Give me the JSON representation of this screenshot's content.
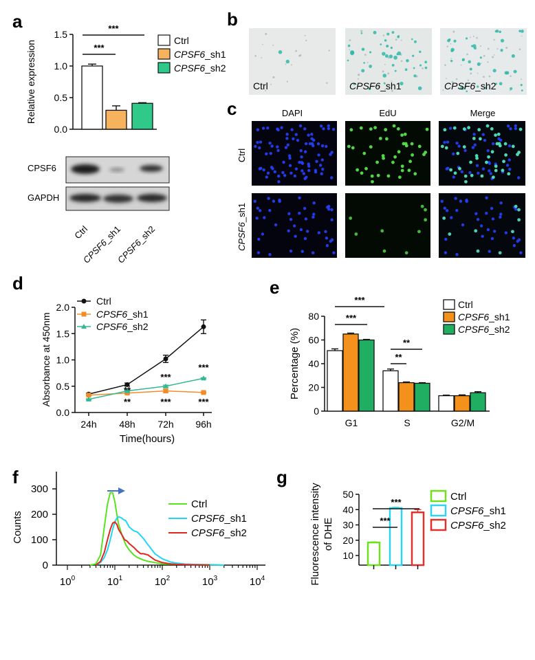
{
  "panel_labels": [
    "a",
    "b",
    "c",
    "d",
    "e",
    "f",
    "g"
  ],
  "colors": {
    "ctrl_a": "#ffffff",
    "sh1_a": "#f7b25e",
    "sh2_a": "#2fc98a",
    "ctrl_d": "#111111",
    "sh1_d": "#f28c28",
    "sh2_d": "#33b894",
    "ctrl_e": "#ffffff",
    "sh1_e": "#f4901c",
    "sh2_e": "#1fae62",
    "ctrl_f": "#57e31d",
    "sh1_f": "#1fd6f6",
    "sh2_f": "#e0261a",
    "ctrl_g": "#6fe11c",
    "sh1_g": "#2fd3f1",
    "sh2_g": "#e0322a",
    "arrow": "#4472c4"
  },
  "a": {
    "legend": [
      {
        "pre": "",
        "em": "",
        "post": "Ctrl"
      },
      {
        "pre": "",
        "em": "CPSF6",
        "post": "_sh1"
      },
      {
        "pre": "",
        "em": "CPSF6",
        "post": "_sh2"
      }
    ],
    "blot_labels": [
      "CPSF6",
      "GAPDH"
    ],
    "blot_xlabels": [
      {
        "pre": "",
        "em": "",
        "post": "Ctrl"
      },
      {
        "pre": "",
        "em": "CPSF6",
        "post": "_sh1"
      },
      {
        "pre": "",
        "em": "CPSF6",
        "post": "_sh2"
      }
    ],
    "sig": [
      "***",
      "***"
    ]
  },
  "b": {
    "labels": [
      {
        "pre": "",
        "em": "",
        "post": "Ctrl"
      },
      {
        "pre": "",
        "em": "CPSF6",
        "post": "_sh1"
      },
      {
        "pre": "",
        "em": "CPSF6",
        "post": "_sh2"
      }
    ]
  },
  "c": {
    "col_labels": [
      "DAPI",
      "EdU",
      "Merge"
    ],
    "row_labels": [
      {
        "pre": "",
        "em": "",
        "post": "Ctrl"
      },
      {
        "pre": "",
        "em": "CPSF6",
        "post": "_sh1"
      }
    ]
  },
  "d": {
    "legend": [
      {
        "pre": "",
        "em": "",
        "post": "Ctrl"
      },
      {
        "pre": "",
        "em": "CPSF6",
        "post": "_sh1"
      },
      {
        "pre": "",
        "em": "CPSF6",
        "post": "_sh2"
      }
    ],
    "sig_upper": [
      "",
      "**",
      "***",
      "***"
    ],
    "sig_lower": [
      "",
      "**",
      "***",
      "***"
    ]
  },
  "e": {
    "legend": [
      {
        "pre": "",
        "em": "",
        "post": "Ctrl"
      },
      {
        "pre": "",
        "em": "CPSF6",
        "post": "_sh1"
      },
      {
        "pre": "",
        "em": "CPSF6",
        "post": "_sh2"
      }
    ],
    "sig": [
      "***",
      "***",
      "**",
      "**"
    ]
  },
  "f": {
    "legend": [
      {
        "pre": "",
        "em": "",
        "post": "Ctrl"
      },
      {
        "pre": "",
        "em": "CPSF6",
        "post": "_sh1"
      },
      {
        "pre": "",
        "em": "CPSF6",
        "post": "_sh2"
      }
    ],
    "xticks": [
      {
        "base": "10",
        "exp": "0"
      },
      {
        "base": "10",
        "exp": "1"
      },
      {
        "base": "10",
        "exp": "2"
      },
      {
        "base": "10",
        "exp": "3"
      },
      {
        "base": "10",
        "exp": "4"
      }
    ]
  },
  "g": {
    "legend": [
      {
        "pre": "",
        "em": "",
        "post": "Ctrl"
      },
      {
        "pre": "",
        "em": "CPSF6",
        "post": "_sh1"
      },
      {
        "pre": "",
        "em": "CPSF6",
        "post": "_sh2"
      }
    ],
    "sig": [
      "***",
      "***"
    ]
  },
  "chart_data": [
    {
      "panel": "a",
      "type": "bar",
      "categories": [
        "Ctrl",
        "CPSF6_sh1",
        "CPSF6_sh2"
      ],
      "values": [
        1.0,
        0.3,
        0.41
      ],
      "errors": [
        0.03,
        0.07,
        0.01
      ],
      "ylabel": "Relative expression",
      "ylim": [
        0,
        1.5
      ],
      "yticks": [
        "0.0",
        "0.5",
        "1.0",
        "1.5"
      ]
    },
    {
      "panel": "d",
      "type": "line",
      "categories": [
        "24h",
        "48h",
        "72h",
        "96h"
      ],
      "series": [
        {
          "name": "Ctrl",
          "values": [
            0.35,
            0.53,
            1.02,
            1.63
          ],
          "errors": [
            0.02,
            0.03,
            0.07,
            0.13
          ]
        },
        {
          "name": "CPSF6_sh1",
          "values": [
            0.33,
            0.37,
            0.41,
            0.38
          ],
          "errors": [
            0.01,
            0.02,
            0.03,
            0.01
          ]
        },
        {
          "name": "CPSF6_sh2",
          "values": [
            0.25,
            0.41,
            0.5,
            0.65
          ],
          "errors": [
            0.01,
            0.01,
            0.02,
            0.01
          ]
        }
      ],
      "xlabel": "Time(hours)",
      "ylabel": "Absorbance at 450nm",
      "ylim": [
        0,
        2.0
      ],
      "yticks": [
        "0.0",
        "0.5",
        "1.0",
        "1.5",
        "2.0"
      ]
    },
    {
      "panel": "e",
      "type": "bar",
      "categories": [
        "G1",
        "S",
        "G2/M"
      ],
      "series": [
        {
          "name": "Ctrl",
          "values": [
            51,
            34,
            13
          ],
          "errors": [
            1.5,
            1.5,
            0.5
          ]
        },
        {
          "name": "CPSF6_sh1",
          "values": [
            65,
            24,
            13
          ],
          "errors": [
            0.8,
            0.6,
            0.7
          ]
        },
        {
          "name": "CPSF6_sh2",
          "values": [
            60,
            23.5,
            15.5
          ],
          "errors": [
            0.5,
            0.5,
            0.9
          ]
        }
      ],
      "ylabel": "Percentage (%)",
      "ylim": [
        0,
        80
      ],
      "yticks": [
        "0",
        "20",
        "40",
        "60",
        "80"
      ]
    },
    {
      "panel": "f",
      "type": "line",
      "x_scale": "log",
      "series": [
        {
          "name": "Ctrl",
          "x": [
            3,
            4,
            5,
            6,
            7,
            8,
            9,
            10,
            11,
            12,
            14,
            17,
            20,
            25,
            30,
            40,
            50,
            70,
            100,
            200,
            1000,
            2000
          ],
          "values": [
            0,
            5,
            40,
            150,
            240,
            285,
            285,
            250,
            200,
            160,
            120,
            80,
            60,
            40,
            30,
            20,
            15,
            10,
            5,
            3,
            2,
            0
          ]
        },
        {
          "name": "CPSF6_sh1",
          "x": [
            4,
            5,
            6,
            7,
            8,
            9,
            10,
            11,
            12,
            13,
            14,
            15,
            17,
            20,
            25,
            30,
            40,
            50,
            70,
            100,
            150,
            200,
            300,
            1000,
            2000
          ],
          "values": [
            0,
            10,
            30,
            60,
            100,
            140,
            170,
            185,
            190,
            188,
            185,
            180,
            175,
            150,
            135,
            130,
            105,
            80,
            45,
            25,
            12,
            8,
            4,
            1,
            0
          ]
        },
        {
          "name": "CPSF6_sh2",
          "x": [
            4,
            5,
            6,
            7,
            8,
            9,
            10,
            11,
            12,
            14,
            16,
            18,
            20,
            25,
            30,
            35,
            40,
            50,
            70,
            100,
            150,
            200,
            500,
            1000
          ],
          "values": [
            0,
            15,
            50,
            100,
            140,
            165,
            170,
            160,
            140,
            120,
            100,
            95,
            85,
            70,
            55,
            45,
            45,
            40,
            20,
            10,
            5,
            3,
            1,
            0
          ]
        }
      ],
      "ylabel": "Counts",
      "xlim": [
        1,
        10000
      ],
      "ylim": [
        0,
        330
      ],
      "yticks": [
        "0",
        "100",
        "200",
        "300"
      ]
    },
    {
      "panel": "g",
      "type": "bar",
      "categories": [
        "Ctrl",
        "CPSF6_sh1",
        "CPSF6_sh2"
      ],
      "values": [
        18.5,
        41,
        38.2
      ],
      "errors": [
        0.4,
        0.5,
        1.8
      ],
      "ylabel": "Fluorescence intensity of DHE",
      "ylim": [
        10,
        50
      ],
      "yticks": [
        "10",
        "20",
        "30",
        "40",
        "50"
      ]
    }
  ]
}
